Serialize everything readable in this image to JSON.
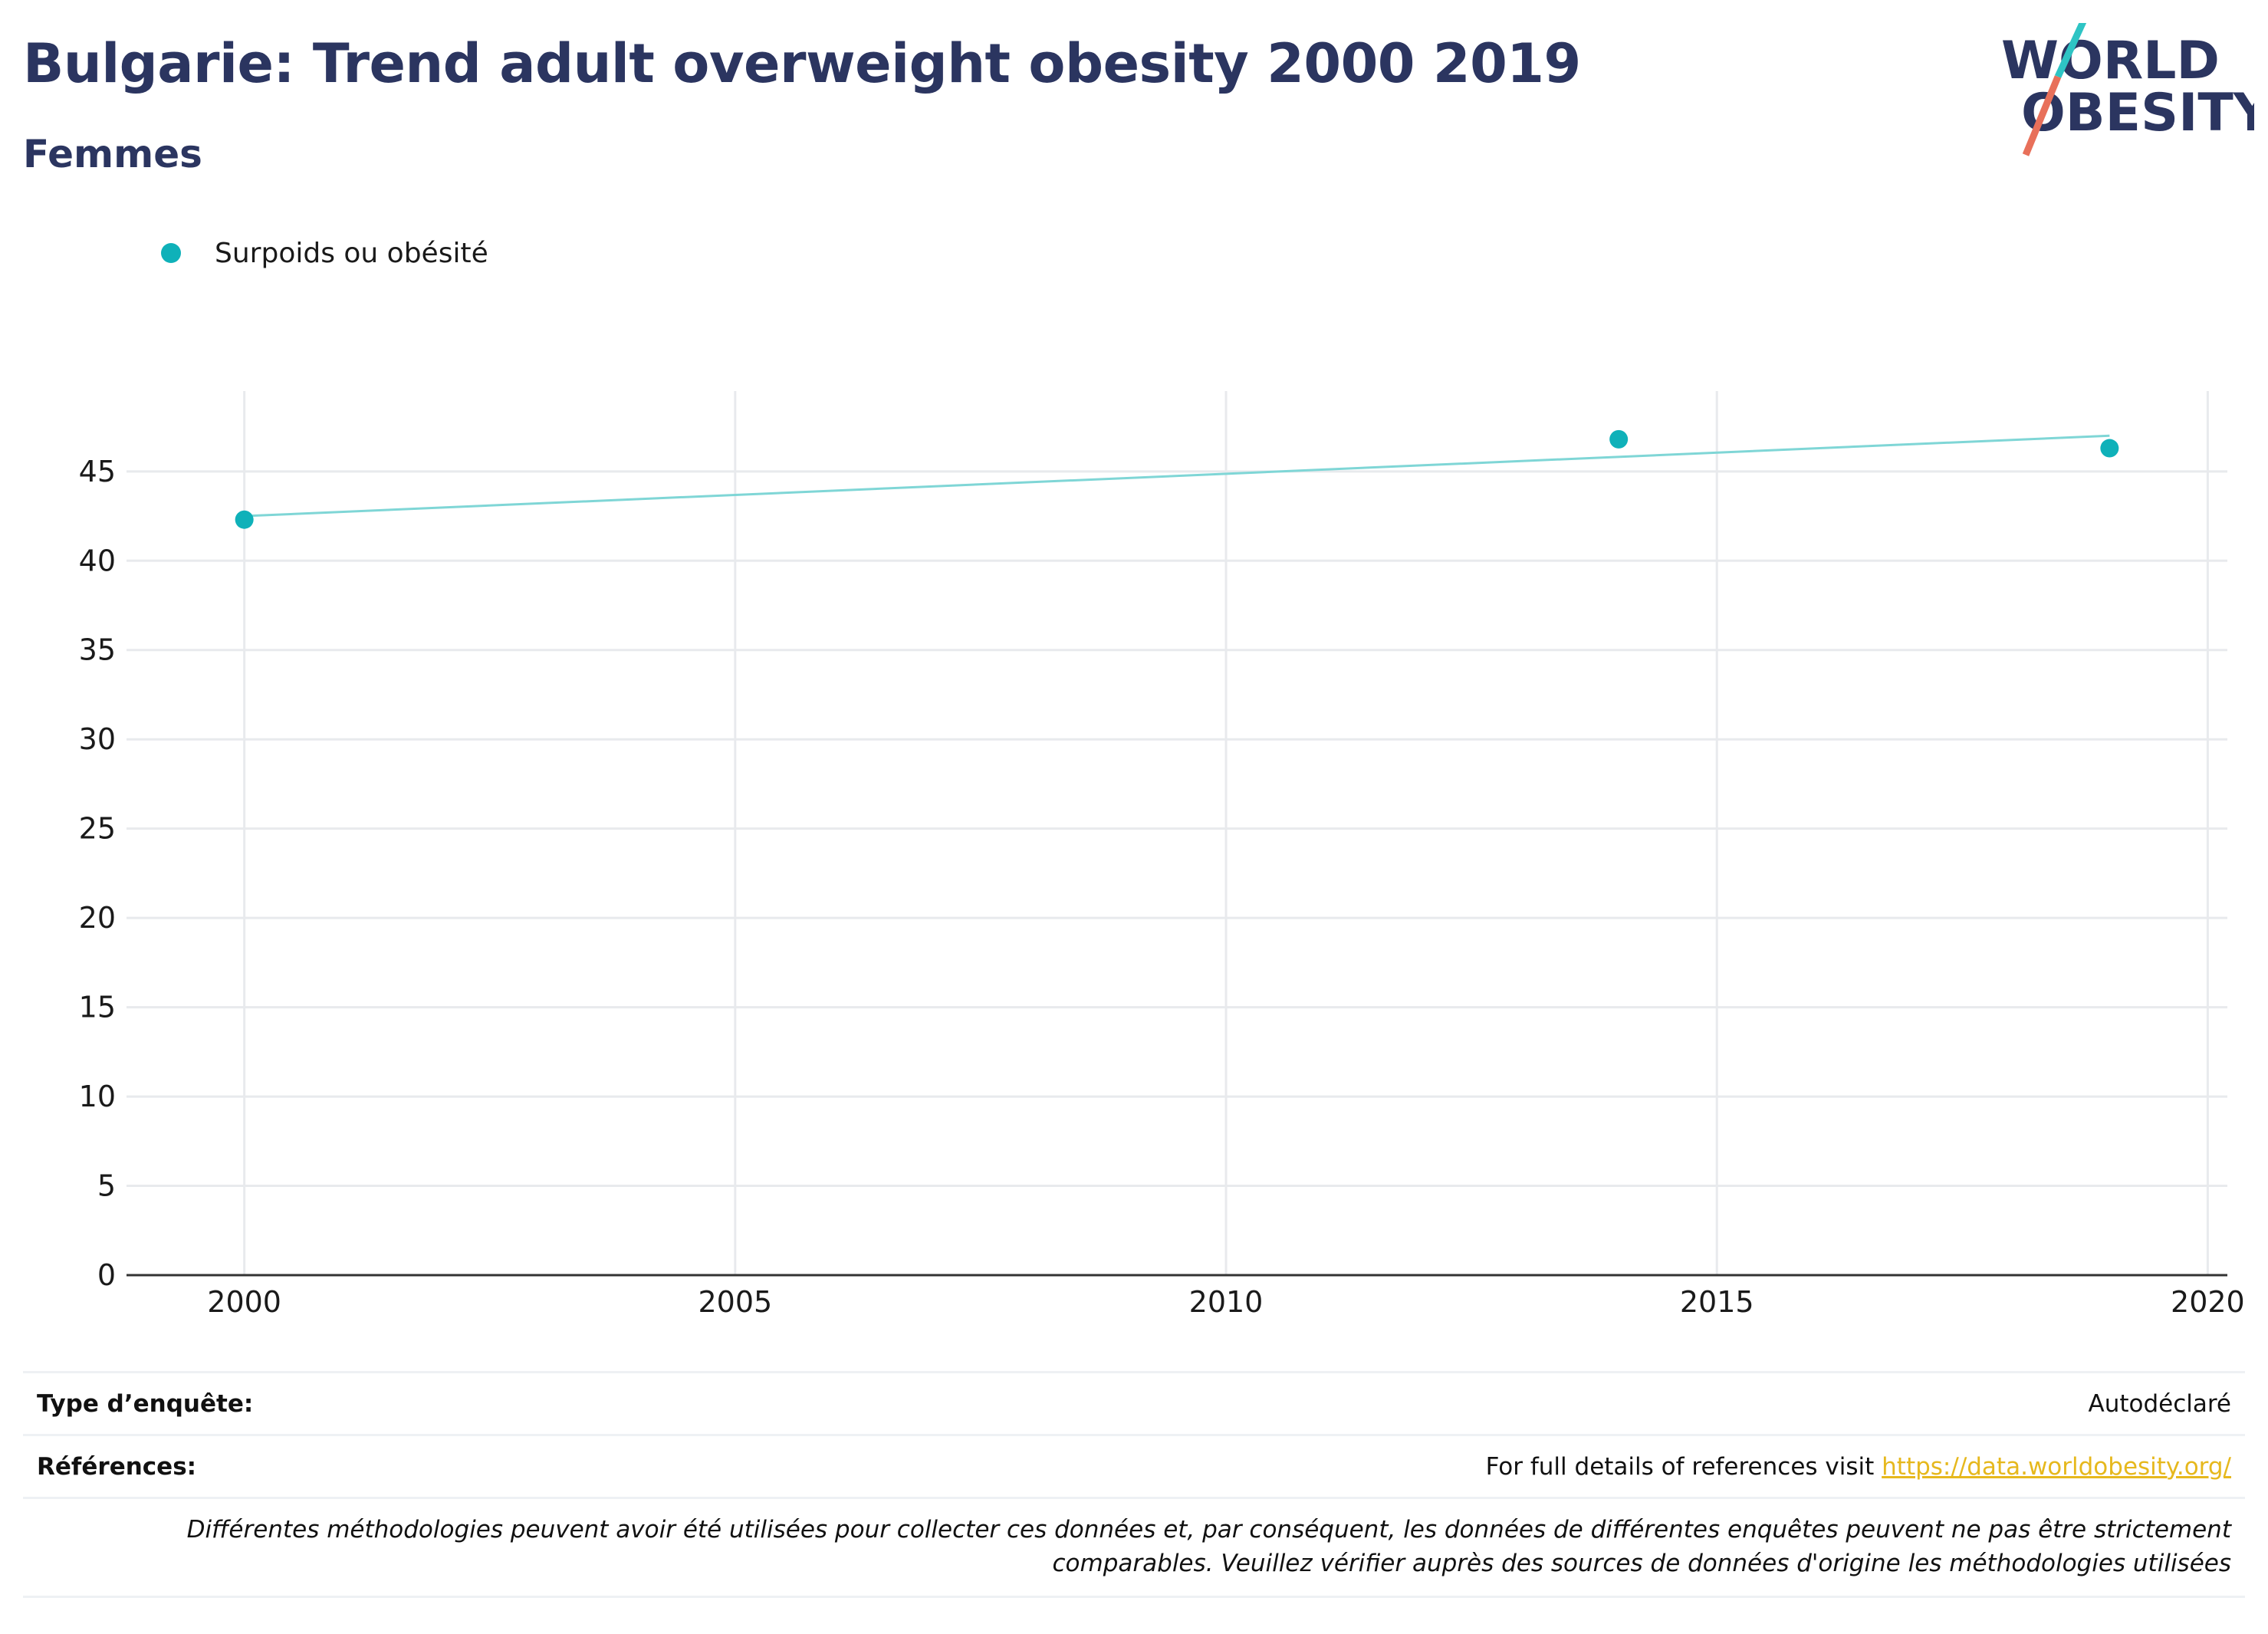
{
  "header": {
    "title": "Bulgarie: Trend adult overweight obesity 2000 2019",
    "subtitle": "Femmes"
  },
  "logo": {
    "line1": "WORLD",
    "line2": "OBESITY",
    "text_color": "#2b3560",
    "slash_colors": [
      "#2ec4c4",
      "#e8705a"
    ]
  },
  "legend": {
    "label": "Surpoids ou obésité",
    "color": "#0fb1b9"
  },
  "chart_data": {
    "type": "scatter",
    "series": [
      {
        "name": "Surpoids ou obésité",
        "color": "#0fb1b9",
        "points": [
          {
            "x": 2000,
            "y": 42.3
          },
          {
            "x": 2014,
            "y": 46.8
          },
          {
            "x": 2019,
            "y": 46.3
          }
        ]
      }
    ],
    "trendline": {
      "color": "#7fd6d6",
      "x": [
        2000,
        2019
      ],
      "y": [
        42.5,
        47.0
      ]
    },
    "xlim": [
      1998.8,
      2020.2
    ],
    "ylim": [
      0,
      49.5
    ],
    "x_ticks": [
      2000,
      2005,
      2010,
      2015,
      2020
    ],
    "y_ticks": [
      0,
      5,
      10,
      15,
      20,
      25,
      30,
      35,
      40,
      45
    ],
    "grid": true,
    "legend_position": "top-left"
  },
  "info": {
    "survey_type_label": "Type d’enquête:",
    "survey_type_value": "Autodéclaré",
    "references_label": "Références:",
    "references_text": "For full details of references visit ",
    "references_link": "https://data.worldobesity.org/",
    "note": "Différentes méthodologies peuvent avoir été utilisées pour collecter ces données et, par conséquent, les données de différentes enquêtes peuvent ne pas être strictement comparables. Veuillez vérifier auprès des sources de données d'origine les méthodologies utilisées"
  }
}
